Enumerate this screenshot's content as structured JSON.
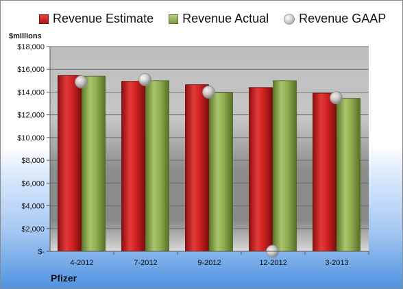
{
  "legend": {
    "estimate_label": "Revenue Estimate",
    "actual_label": "Revenue Actual",
    "gaap_label": "Revenue GAAP"
  },
  "units_label": "$millions",
  "company_label": "Pfizer",
  "colors": {
    "estimate": "#c81f1f",
    "actual": "#8fab4d",
    "gaap": "#bdbdbd"
  },
  "chart_data": {
    "type": "bar",
    "categories": [
      "4-2012",
      "7-2012",
      "9-2012",
      "12-2012",
      "3-2013"
    ],
    "series": [
      {
        "name": "Revenue Estimate",
        "values": [
          15450,
          14950,
          14650,
          14400,
          13900
        ]
      },
      {
        "name": "Revenue Actual",
        "values": [
          15400,
          15000,
          13950,
          15000,
          13450
        ]
      },
      {
        "name": "Revenue GAAP",
        "values": [
          14900,
          15100,
          14000,
          0,
          13500
        ]
      }
    ],
    "ylabel": "$millions",
    "ylim": [
      0,
      18000
    ],
    "yticks": [
      0,
      2000,
      4000,
      6000,
      8000,
      10000,
      12000,
      14000,
      16000,
      18000
    ],
    "ytick_labels": [
      "$-",
      "$2,000",
      "$4,000",
      "$6,000",
      "$8,000",
      "$10,000",
      "$12,000",
      "$14,000",
      "$16,000",
      "$18,000"
    ],
    "grid": true,
    "legend_position": "top"
  }
}
